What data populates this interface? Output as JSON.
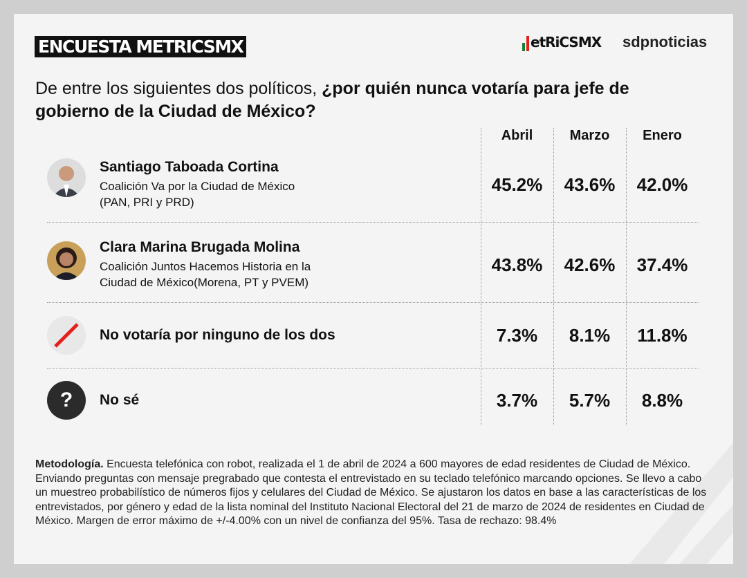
{
  "header": {
    "badge": "ENCUESTA METRICSMX",
    "logo_metrics": "etRiCSMX",
    "logo_sdp": "sdpnoticias"
  },
  "question": {
    "plain": "De entre los siguientes dos políticos, ",
    "bold": "¿por quién nunca votaría para jefe de gobierno de la Ciudad de México?"
  },
  "chart_data": {
    "type": "table",
    "title": "De entre los siguientes dos políticos, ¿por quién nunca votaría para jefe de gobierno de la Ciudad de México?",
    "columns": [
      "Abril",
      "Marzo",
      "Enero"
    ],
    "rows": [
      {
        "name": "Santiago Taboada Cortina",
        "sub1": "Coalición Va por la Ciudad de México",
        "sub2": "(PAN, PRI y PRD)",
        "values": [
          "45.2%",
          "43.6%",
          "42.0%"
        ]
      },
      {
        "name": "Clara Marina Brugada Molina",
        "sub1": "Coalición Juntos Hacemos Historia en la",
        "sub2": "Ciudad de México(Morena, PT y PVEM)",
        "values": [
          "43.8%",
          "42.6%",
          "37.4%"
        ]
      },
      {
        "name": "No votaría por ninguno de los dos",
        "values": [
          "7.3%",
          "8.1%",
          "11.8%"
        ]
      },
      {
        "name": "No sé",
        "values": [
          "3.7%",
          "5.7%",
          "8.8%"
        ]
      }
    ]
  },
  "methodology": {
    "label": "Metodología.",
    "text": " Encuesta telefónica con robot, realizada el 1 de abril de 2024 a 600 mayores de edad residentes de Ciudad de México. Enviando preguntas con mensaje pregrabado que contesta el entrevistado en su teclado telefónico marcando opciones. Se llevo a cabo un muestreo probabilístico de números fijos y celulares del Ciudad de México. Se ajustaron los datos en base a las características de los entrevistados, por género y edad de la lista nominal del Instituto Nacional Electoral del 21 de marzo de 2024 de residentes en Ciudad de México. Margen de error máximo de +/-4.00% con un nivel de confianza del 95%. Tasa de rechazo: 98.4%"
  },
  "colors": {
    "red": "#e3201b",
    "green": "#1a7f3a",
    "dark": "#2b2b2b"
  },
  "icons": {
    "none": "slash-icon",
    "unknown": "question-icon"
  }
}
